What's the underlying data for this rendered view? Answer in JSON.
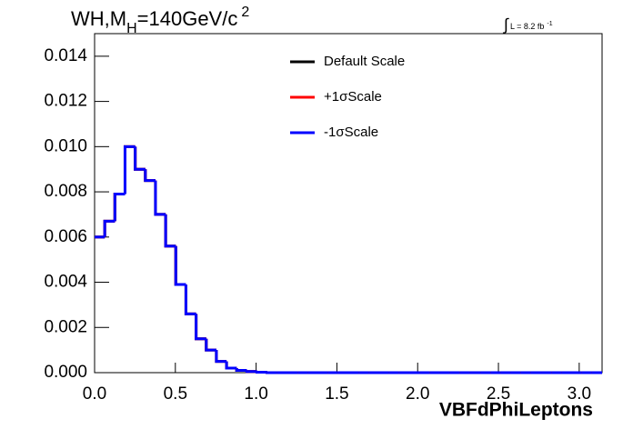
{
  "chart_data": {
    "type": "histogram",
    "title": [
      "WH,M",
      "H",
      "=140GeV/c",
      "2"
    ],
    "luminosity": [
      "∫",
      "L = 8.2 fb",
      "-1"
    ],
    "xlabel": "VBFdPhiLeptons",
    "bins": [
      0,
      0.0628,
      0.1257,
      0.1885,
      0.2513,
      0.3142,
      0.377,
      0.4398,
      0.5027,
      0.5655,
      0.6283,
      0.6912,
      0.754,
      0.8168,
      0.8796,
      0.9425,
      1.0053,
      1.0681,
      1.131,
      1.1938,
      1.2566,
      1.3195,
      1.3823,
      1.4451,
      1.508,
      1.5708,
      1.6336,
      1.6965,
      1.7593,
      1.8221,
      1.885,
      1.9478,
      2.0106,
      2.0735,
      2.1363,
      2.1991,
      2.2619,
      2.3248,
      2.3876,
      2.4504,
      2.5133,
      2.5761,
      2.6389,
      2.7018,
      2.7646,
      2.8274,
      2.8903,
      2.9531,
      3.0159,
      3.0788,
      3.1416
    ],
    "series": [
      {
        "name": "Default Scale",
        "color": "#000000",
        "values": [
          0.006,
          0.0067,
          0.0079,
          0.01,
          0.009,
          0.0085,
          0.007,
          0.0056,
          0.0039,
          0.0026,
          0.0015,
          0.001,
          0.0005,
          0.0002,
          0.0001,
          5e-05,
          2e-05,
          0,
          0,
          0,
          0,
          0,
          0,
          0,
          0,
          0,
          0,
          0,
          0,
          0,
          0,
          0,
          0,
          0,
          0,
          0,
          0,
          0,
          0,
          0,
          0,
          0,
          0,
          0,
          0,
          0,
          0,
          0,
          0,
          0
        ]
      },
      {
        "name": "+1σScale",
        "color": "#ff0000",
        "values": [
          0.006,
          0.0067,
          0.0079,
          0.01,
          0.009,
          0.0085,
          0.007,
          0.0056,
          0.0039,
          0.0026,
          0.0015,
          0.001,
          0.0005,
          0.0002,
          0.0001,
          5e-05,
          2e-05,
          0,
          0,
          0,
          0,
          0,
          0,
          0,
          0,
          0,
          0,
          0,
          0,
          0,
          0,
          0,
          0,
          0,
          0,
          0,
          0,
          0,
          0,
          0,
          0,
          0,
          0,
          0,
          0,
          0,
          0,
          0,
          0,
          0
        ]
      },
      {
        "name": "-1σScale",
        "color": "#0000ff",
        "values": [
          0.006,
          0.0067,
          0.0079,
          0.01,
          0.009,
          0.0085,
          0.007,
          0.0056,
          0.0039,
          0.0026,
          0.0015,
          0.001,
          0.0005,
          0.0002,
          0.0001,
          5e-05,
          2e-05,
          0,
          0,
          0,
          0,
          0,
          0,
          0,
          0,
          0,
          0,
          0,
          0,
          0,
          0,
          0,
          0,
          0,
          0,
          0,
          0,
          0,
          0,
          0,
          0,
          0,
          0,
          0,
          0,
          0,
          0,
          0,
          0,
          0
        ]
      }
    ],
    "xlim": [
      0,
      3.1416
    ],
    "ylim": [
      0,
      0.015
    ],
    "xticks": [
      {
        "value": 0,
        "label": "0.0"
      },
      {
        "value": 0.5,
        "label": "0.5"
      },
      {
        "value": 1,
        "label": "1.0"
      },
      {
        "value": 1.5,
        "label": "1.5"
      },
      {
        "value": 2,
        "label": "2.0"
      },
      {
        "value": 2.5,
        "label": "2.5"
      },
      {
        "value": 3,
        "label": "3.0"
      }
    ],
    "yticks": [
      {
        "value": 0,
        "label": "0.000"
      },
      {
        "value": 0.002,
        "label": "0.002"
      },
      {
        "value": 0.004,
        "label": "0.004"
      },
      {
        "value": 0.006,
        "label": "0.006"
      },
      {
        "value": 0.008,
        "label": "0.008"
      },
      {
        "value": 0.01,
        "label": "0.010"
      },
      {
        "value": 0.012,
        "label": "0.012"
      },
      {
        "value": 0.014,
        "label": "0.014"
      }
    ],
    "legend": "top-center",
    "grid": false
  }
}
